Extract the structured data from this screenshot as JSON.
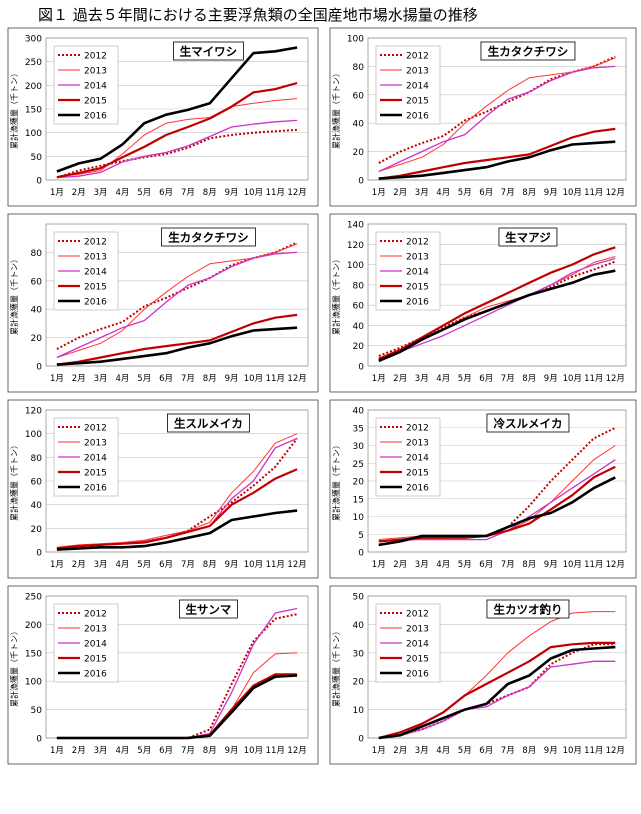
{
  "figure_title": "図１ 過去５年間における主要浮魚類の全国産地市場水揚量の推移",
  "legend_years": [
    "2012",
    "2013",
    "2014",
    "2015",
    "2016"
  ],
  "series_colors": {
    "2012": "#c00000",
    "2013": "#ff3333",
    "2014": "#cc33cc",
    "2015": "#c00000",
    "2016": "#000000"
  },
  "months": [
    "1月",
    "2月",
    "3月",
    "4月",
    "5月",
    "6月",
    "7月",
    "8月",
    "9月",
    "10月",
    "11月",
    "12月"
  ],
  "ylabel": "累計漁獲量（千トン）",
  "chart_data": [
    {
      "type": "line",
      "title": "生マイワシ",
      "ylim": [
        0,
        300
      ],
      "yticks": [
        0,
        50,
        100,
        150,
        200,
        250,
        300
      ],
      "legend": "top-left",
      "series": [
        {
          "name": "2012",
          "values": [
            5,
            20,
            30,
            40,
            48,
            55,
            68,
            88,
            95,
            100,
            103,
            106
          ]
        },
        {
          "name": "2013",
          "values": [
            7,
            12,
            20,
            55,
            95,
            120,
            128,
            132,
            155,
            162,
            168,
            172
          ]
        },
        {
          "name": "2014",
          "values": [
            5,
            8,
            16,
            38,
            50,
            58,
            72,
            92,
            112,
            118,
            123,
            126
          ]
        },
        {
          "name": "2015",
          "values": [
            6,
            15,
            25,
            48,
            70,
            95,
            112,
            130,
            155,
            185,
            192,
            205
          ]
        },
        {
          "name": "2016",
          "values": [
            18,
            35,
            45,
            75,
            120,
            138,
            148,
            162,
            215,
            268,
            272,
            280
          ]
        }
      ]
    },
    {
      "type": "line",
      "title": "生カタクチワシ",
      "ylim": [
        0,
        100
      ],
      "yticks": [
        0,
        20,
        40,
        60,
        80,
        100
      ],
      "legend": "top-left",
      "series": [
        {
          "name": "2012",
          "values": [
            12,
            20,
            26,
            31,
            42,
            48,
            55,
            62,
            71,
            76,
            80,
            87
          ]
        },
        {
          "name": "2013",
          "values": [
            6,
            11,
            16,
            25,
            40,
            52,
            63,
            72,
            74,
            76,
            80,
            86
          ]
        },
        {
          "name": "2014",
          "values": [
            6,
            13,
            20,
            27,
            32,
            45,
            57,
            62,
            70,
            76,
            79,
            80
          ]
        },
        {
          "name": "2015",
          "values": [
            1,
            3,
            6,
            9,
            12,
            14,
            16,
            18,
            24,
            30,
            34,
            36
          ]
        },
        {
          "name": "2016",
          "values": [
            1,
            2,
            3,
            5,
            7,
            9,
            13,
            16,
            21,
            25,
            26,
            27
          ]
        }
      ]
    },
    {
      "type": "line",
      "title": "生カタクチワシ",
      "ylim": [
        0,
        100
      ],
      "yticks": [
        0,
        20,
        40,
        60,
        80
      ],
      "legend": "top-left",
      "series": [
        {
          "name": "2012",
          "values": [
            12,
            20,
            26,
            31,
            42,
            48,
            55,
            62,
            71,
            76,
            80,
            87
          ]
        },
        {
          "name": "2013",
          "values": [
            6,
            11,
            16,
            25,
            40,
            52,
            63,
            72,
            74,
            76,
            80,
            86
          ]
        },
        {
          "name": "2014",
          "values": [
            6,
            13,
            20,
            27,
            32,
            45,
            57,
            62,
            70,
            76,
            79,
            80
          ]
        },
        {
          "name": "2015",
          "values": [
            1,
            3,
            6,
            9,
            12,
            14,
            16,
            18,
            24,
            30,
            34,
            36
          ]
        },
        {
          "name": "2016",
          "values": [
            1,
            2,
            3,
            5,
            7,
            9,
            13,
            16,
            21,
            25,
            26,
            27
          ]
        }
      ]
    },
    {
      "type": "line",
      "title": "生マアジ",
      "ylim": [
        0,
        140
      ],
      "yticks": [
        0,
        20,
        40,
        60,
        80,
        100,
        120,
        140
      ],
      "legend": "top-left",
      "series": [
        {
          "name": "2012",
          "values": [
            10,
            18,
            28,
            38,
            48,
            54,
            62,
            70,
            78,
            88,
            95,
            103
          ]
        },
        {
          "name": "2013",
          "values": [
            8,
            15,
            25,
            36,
            48,
            58,
            64,
            70,
            80,
            90,
            102,
            108
          ]
        },
        {
          "name": "2014",
          "values": [
            6,
            14,
            22,
            30,
            40,
            50,
            60,
            70,
            80,
            92,
            100,
            106
          ]
        },
        {
          "name": "2015",
          "values": [
            7,
            16,
            28,
            40,
            52,
            62,
            72,
            82,
            92,
            100,
            110,
            117
          ]
        },
        {
          "name": "2016",
          "values": [
            5,
            14,
            26,
            36,
            46,
            54,
            62,
            70,
            76,
            82,
            90,
            94
          ]
        }
      ]
    },
    {
      "type": "line",
      "title": "生スルメイカ",
      "ylim": [
        0,
        120
      ],
      "yticks": [
        0,
        20,
        40,
        60,
        80,
        100,
        120
      ],
      "legend": "top-left",
      "series": [
        {
          "name": "2012",
          "values": [
            3,
            5,
            6,
            7,
            9,
            12,
            18,
            30,
            42,
            56,
            72,
            96
          ]
        },
        {
          "name": "2013",
          "values": [
            4,
            6,
            7,
            8,
            10,
            14,
            18,
            25,
            50,
            68,
            92,
            100
          ]
        },
        {
          "name": "2014",
          "values": [
            3,
            5,
            6,
            7,
            9,
            12,
            17,
            22,
            45,
            60,
            88,
            96
          ]
        },
        {
          "name": "2015",
          "values": [
            3,
            5,
            6,
            7,
            8,
            12,
            17,
            22,
            40,
            50,
            62,
            70
          ]
        },
        {
          "name": "2016",
          "values": [
            2,
            3,
            4,
            4,
            5,
            8,
            12,
            16,
            27,
            30,
            33,
            35
          ]
        }
      ]
    },
    {
      "type": "line",
      "title": "冷スルメイカ",
      "ylim": [
        0,
        40
      ],
      "yticks": [
        0,
        5,
        10,
        15,
        20,
        25,
        30,
        35,
        40
      ],
      "legend": "top-left",
      "series": [
        {
          "name": "2012",
          "values": [
            2,
            3,
            4,
            4,
            4.5,
            4.5,
            7,
            13,
            20,
            26,
            32,
            35
          ]
        },
        {
          "name": "2013",
          "values": [
            3.5,
            4,
            4.5,
            4.5,
            4.5,
            4.5,
            6,
            9,
            14,
            20,
            26,
            30
          ]
        },
        {
          "name": "2014",
          "values": [
            3,
            3.5,
            3.5,
            3.5,
            3.5,
            3.5,
            6,
            10,
            14,
            18,
            22,
            26
          ]
        },
        {
          "name": "2015",
          "values": [
            3,
            3.5,
            4,
            4,
            4,
            4.5,
            6,
            8,
            12,
            16,
            21,
            24
          ]
        },
        {
          "name": "2016",
          "values": [
            2,
            3,
            4.5,
            4.5,
            4.5,
            4.5,
            7,
            9.5,
            11,
            14,
            18,
            21
          ]
        }
      ]
    },
    {
      "type": "line",
      "title": "生サンマ",
      "ylim": [
        0,
        250
      ],
      "yticks": [
        0,
        50,
        100,
        150,
        200,
        250
      ],
      "legend": "top-left",
      "series": [
        {
          "name": "2012",
          "values": [
            0,
            0,
            0,
            0,
            0,
            0,
            0,
            15,
            95,
            170,
            210,
            218
          ]
        },
        {
          "name": "2013",
          "values": [
            0,
            0,
            0,
            0,
            0,
            0,
            0,
            5,
            50,
            115,
            148,
            150
          ]
        },
        {
          "name": "2014",
          "values": [
            0,
            0,
            0,
            0,
            0,
            0,
            0,
            8,
            80,
            165,
            220,
            228
          ]
        },
        {
          "name": "2015",
          "values": [
            0,
            0,
            0,
            0,
            0,
            0,
            0,
            5,
            50,
            92,
            112,
            112
          ]
        },
        {
          "name": "2016",
          "values": [
            0,
            0,
            0,
            0,
            0,
            0,
            0,
            4,
            45,
            88,
            108,
            110
          ]
        }
      ]
    },
    {
      "type": "line",
      "title": "生カツオ釣り",
      "ylim": [
        0,
        50
      ],
      "yticks": [
        0,
        10,
        20,
        30,
        40,
        50
      ],
      "legend": "top-left",
      "series": [
        {
          "name": "2012",
          "values": [
            0,
            1,
            3,
            6,
            10,
            12,
            15,
            18,
            26,
            30,
            33,
            33
          ]
        },
        {
          "name": "2013",
          "values": [
            0,
            2,
            5,
            9,
            15,
            22,
            30,
            36,
            41,
            44,
            44.5,
            44.5
          ]
        },
        {
          "name": "2014",
          "values": [
            0,
            1,
            3,
            6,
            10,
            11,
            15,
            18,
            25,
            26,
            27,
            27
          ]
        },
        {
          "name": "2015",
          "values": [
            0,
            2,
            5,
            9,
            15,
            19,
            23,
            27,
            32,
            33,
            33.5,
            33.5
          ]
        },
        {
          "name": "2016",
          "values": [
            0,
            1,
            4,
            7,
            10,
            12,
            19,
            22,
            28,
            31,
            31.5,
            32
          ]
        }
      ]
    }
  ]
}
